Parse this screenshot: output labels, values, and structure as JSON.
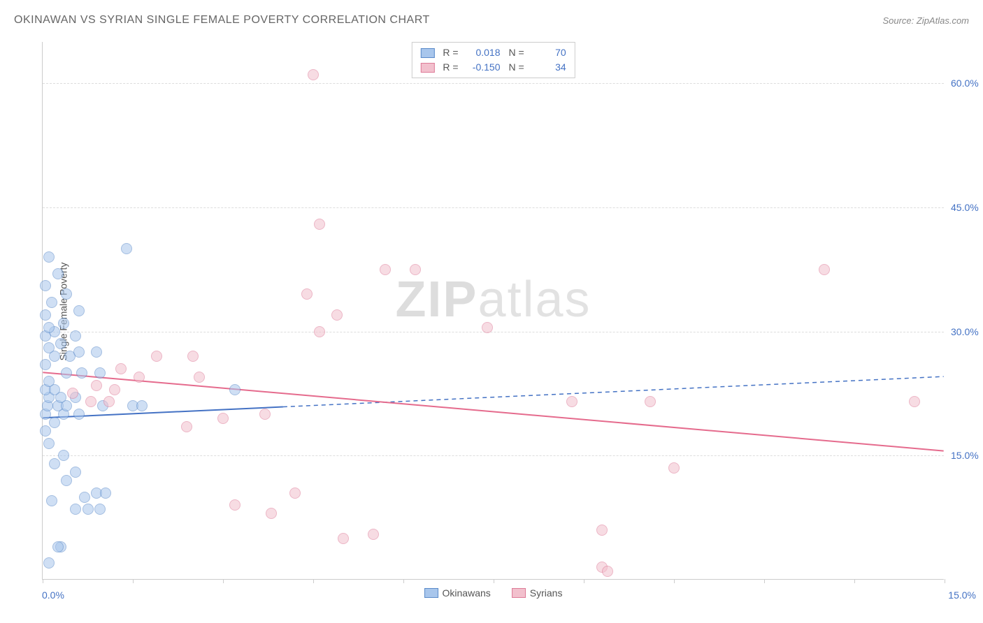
{
  "header": {
    "title": "OKINAWAN VS SYRIAN SINGLE FEMALE POVERTY CORRELATION CHART",
    "source": "Source: ZipAtlas.com"
  },
  "watermark": {
    "zip": "ZIP",
    "atlas": "atlas"
  },
  "chart": {
    "type": "scatter",
    "ylabel": "Single Female Poverty",
    "xlim": [
      0,
      15
    ],
    "ylim": [
      0,
      65
    ],
    "background_color": "#ffffff",
    "grid_color": "#dddddd",
    "axis_color": "#cccccc",
    "tick_label_color": "#4472c4",
    "tick_fontsize": 14,
    "y_ticks": [
      {
        "value": 15,
        "label": "15.0%"
      },
      {
        "value": 30,
        "label": "30.0%"
      },
      {
        "value": 45,
        "label": "45.0%"
      },
      {
        "value": 60,
        "label": "60.0%"
      }
    ],
    "x_ticks": [
      0,
      1.5,
      3.0,
      4.5,
      6.0,
      7.5,
      9.0,
      10.5,
      12.0,
      13.5,
      15.0
    ],
    "x_left_label": "0.0%",
    "x_right_label": "15.0%",
    "marker_radius": 8,
    "marker_opacity": 0.55,
    "series": [
      {
        "name": "Okinawans",
        "fill_color": "#a8c6ec",
        "stroke_color": "#5a8ac9",
        "R": "0.018",
        "N": "70",
        "trend": {
          "y_at_x0": 19.5,
          "y_at_x15": 24.5,
          "solid_until_x": 4.0,
          "color": "#4472c4",
          "width": 2
        },
        "points": [
          [
            0.1,
            2.0
          ],
          [
            0.3,
            4.0
          ],
          [
            0.25,
            4.0
          ],
          [
            0.55,
            8.5
          ],
          [
            0.75,
            8.5
          ],
          [
            0.95,
            8.5
          ],
          [
            0.15,
            9.5
          ],
          [
            0.7,
            10.0
          ],
          [
            0.9,
            10.5
          ],
          [
            1.05,
            10.5
          ],
          [
            0.4,
            12.0
          ],
          [
            0.55,
            13.0
          ],
          [
            0.2,
            14.0
          ],
          [
            0.35,
            15.0
          ],
          [
            0.1,
            16.5
          ],
          [
            0.05,
            18.0
          ],
          [
            0.2,
            19.0
          ],
          [
            0.05,
            20.0
          ],
          [
            0.35,
            20.0
          ],
          [
            0.6,
            20.0
          ],
          [
            0.08,
            21.0
          ],
          [
            0.25,
            21.0
          ],
          [
            0.4,
            21.0
          ],
          [
            1.0,
            21.0
          ],
          [
            1.5,
            21.0
          ],
          [
            1.65,
            21.0
          ],
          [
            0.1,
            22.0
          ],
          [
            0.3,
            22.0
          ],
          [
            0.55,
            22.0
          ],
          [
            0.05,
            23.0
          ],
          [
            0.2,
            23.0
          ],
          [
            3.2,
            23.0
          ],
          [
            0.1,
            24.0
          ],
          [
            0.4,
            25.0
          ],
          [
            0.65,
            25.0
          ],
          [
            0.95,
            25.0
          ],
          [
            0.05,
            26.0
          ],
          [
            0.2,
            27.0
          ],
          [
            0.45,
            27.0
          ],
          [
            0.6,
            27.5
          ],
          [
            0.9,
            27.5
          ],
          [
            0.1,
            28.0
          ],
          [
            0.3,
            28.5
          ],
          [
            0.05,
            29.5
          ],
          [
            0.55,
            29.5
          ],
          [
            0.2,
            30.0
          ],
          [
            0.1,
            30.5
          ],
          [
            0.35,
            31.0
          ],
          [
            0.05,
            32.0
          ],
          [
            0.6,
            32.5
          ],
          [
            0.15,
            33.5
          ],
          [
            0.4,
            34.5
          ],
          [
            0.05,
            35.5
          ],
          [
            0.25,
            37.0
          ],
          [
            0.1,
            39.0
          ],
          [
            1.4,
            40.0
          ]
        ]
      },
      {
        "name": "Syrians",
        "fill_color": "#f2c0cd",
        "stroke_color": "#de7b98",
        "R": "-0.150",
        "N": "34",
        "trend": {
          "y_at_x0": 25.0,
          "y_at_x15": 15.5,
          "solid_until_x": 15.0,
          "color": "#e56b8d",
          "width": 2
        },
        "points": [
          [
            9.3,
            1.5
          ],
          [
            9.4,
            1.0
          ],
          [
            5.0,
            5.0
          ],
          [
            5.5,
            5.5
          ],
          [
            9.3,
            6.0
          ],
          [
            3.8,
            8.0
          ],
          [
            3.2,
            9.0
          ],
          [
            4.2,
            10.5
          ],
          [
            10.5,
            13.5
          ],
          [
            2.4,
            18.5
          ],
          [
            3.0,
            19.5
          ],
          [
            3.7,
            20.0
          ],
          [
            1.1,
            21.5
          ],
          [
            8.8,
            21.5
          ],
          [
            10.1,
            21.5
          ],
          [
            14.5,
            21.5
          ],
          [
            0.8,
            21.5
          ],
          [
            0.5,
            22.5
          ],
          [
            1.2,
            23.0
          ],
          [
            0.9,
            23.5
          ],
          [
            1.6,
            24.5
          ],
          [
            2.6,
            24.5
          ],
          [
            1.3,
            25.5
          ],
          [
            1.9,
            27.0
          ],
          [
            2.5,
            27.0
          ],
          [
            4.6,
            30.0
          ],
          [
            7.4,
            30.5
          ],
          [
            4.9,
            32.0
          ],
          [
            4.4,
            34.5
          ],
          [
            5.7,
            37.5
          ],
          [
            6.2,
            37.5
          ],
          [
            13.0,
            37.5
          ],
          [
            4.6,
            43.0
          ],
          [
            4.5,
            61.0
          ]
        ]
      }
    ]
  },
  "legend_top": {
    "r_label": "R =",
    "n_label": "N ="
  },
  "legend_bottom": {
    "swatch_size": 18
  }
}
